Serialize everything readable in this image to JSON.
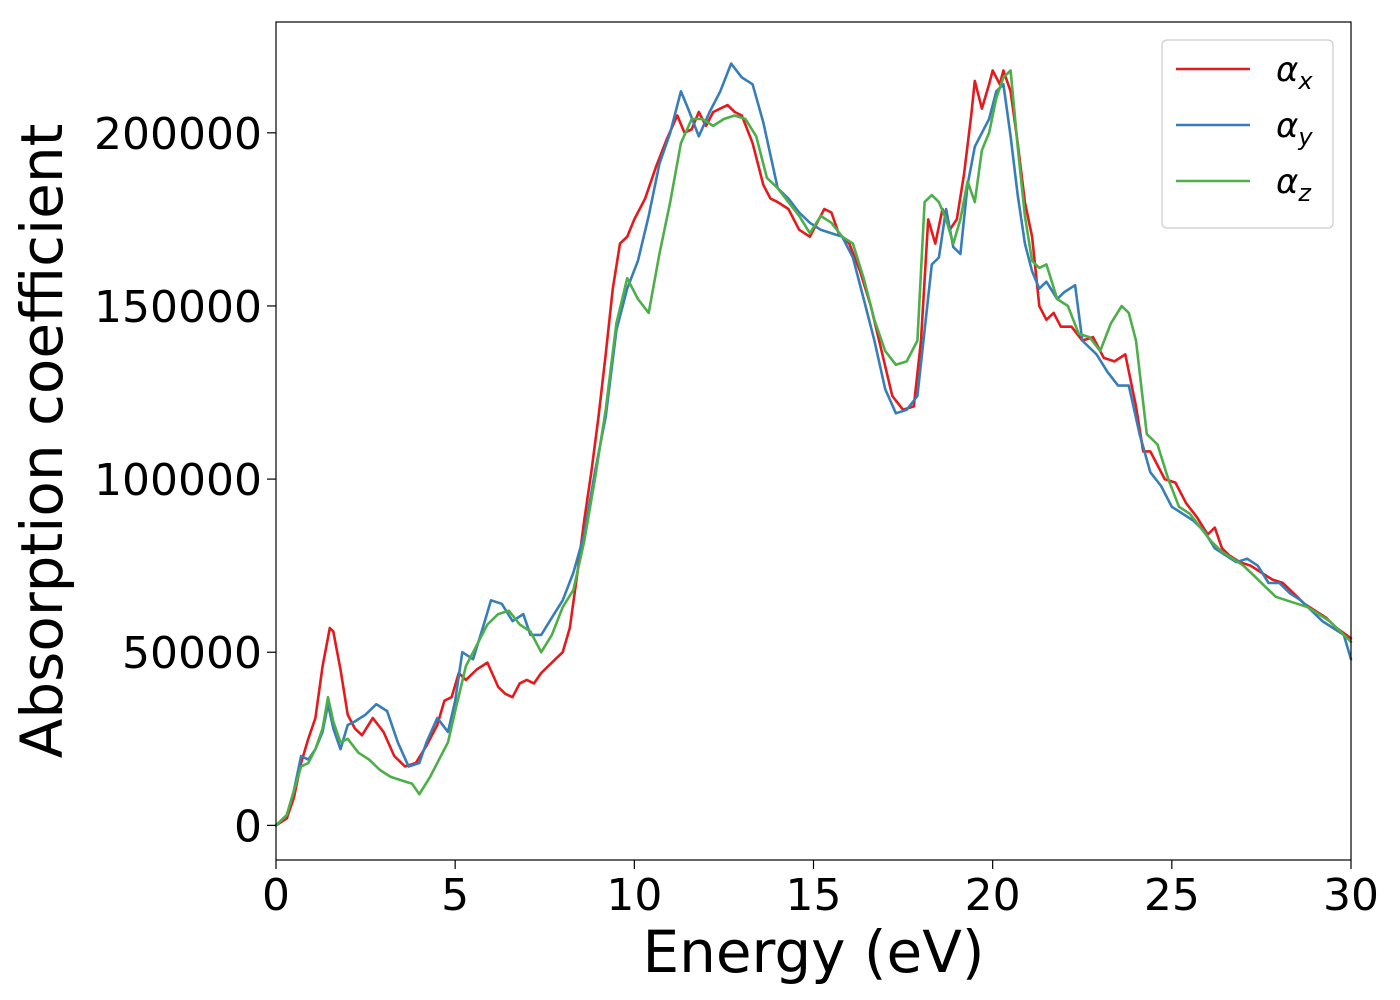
{
  "chart_data": {
    "type": "line",
    "title": "",
    "xlabel": "Energy (eV)",
    "ylabel": "Absorption coefficient",
    "xlim": [
      0,
      30
    ],
    "ylim": [
      -10000,
      232000
    ],
    "xticks": [
      0,
      5,
      10,
      15,
      20,
      25,
      30
    ],
    "yticks": [
      0,
      50000,
      100000,
      150000,
      200000
    ],
    "grid": false,
    "legend": "top-right",
    "series": [
      {
        "name": "α_x",
        "color": "#e41a1c",
        "x": [
          0,
          0.3,
          0.5,
          0.7,
          0.9,
          1.1,
          1.3,
          1.5,
          1.6,
          1.8,
          2.0,
          2.2,
          2.4,
          2.7,
          3.0,
          3.3,
          3.6,
          3.9,
          4.2,
          4.5,
          4.7,
          4.9,
          5.1,
          5.3,
          5.6,
          5.9,
          6.2,
          6.4,
          6.6,
          6.8,
          7.0,
          7.2,
          7.4,
          7.7,
          8.0,
          8.2,
          8.4,
          8.6,
          8.8,
          9.0,
          9.2,
          9.4,
          9.6,
          9.8,
          10.0,
          10.3,
          10.6,
          10.9,
          11.2,
          11.4,
          11.6,
          11.8,
          12.0,
          12.2,
          12.4,
          12.6,
          12.8,
          13.0,
          13.3,
          13.6,
          13.8,
          14.0,
          14.3,
          14.6,
          14.9,
          15.1,
          15.3,
          15.5,
          15.7,
          16.0,
          16.3,
          16.6,
          16.9,
          17.2,
          17.5,
          17.8,
          18.0,
          18.2,
          18.4,
          18.6,
          18.8,
          19.0,
          19.2,
          19.4,
          19.5,
          19.7,
          19.9,
          20.0,
          20.2,
          20.3,
          20.5,
          20.7,
          20.9,
          21.1,
          21.3,
          21.5,
          21.7,
          21.9,
          22.2,
          22.5,
          22.8,
          23.1,
          23.4,
          23.7,
          24.0,
          24.2,
          24.4,
          24.6,
          24.8,
          25.1,
          25.4,
          25.7,
          26.0,
          26.2,
          26.4,
          26.6,
          26.9,
          27.2,
          27.5,
          27.8,
          28.1,
          28.4,
          28.7,
          29.0,
          29.3,
          29.6,
          30.0
        ],
        "y": [
          0,
          2000,
          8000,
          18000,
          25000,
          31000,
          46000,
          57000,
          56000,
          45000,
          32000,
          28000,
          26000,
          31000,
          27000,
          20000,
          17000,
          18000,
          23000,
          29000,
          36000,
          37000,
          44000,
          42000,
          45000,
          47000,
          40000,
          38000,
          37000,
          41000,
          42000,
          41000,
          44000,
          47000,
          50000,
          57000,
          72000,
          88000,
          102000,
          118000,
          136000,
          155000,
          168000,
          170000,
          175000,
          181000,
          190000,
          198000,
          205000,
          200000,
          201000,
          206000,
          202000,
          206000,
          207000,
          208000,
          206000,
          205000,
          197000,
          185000,
          181000,
          180000,
          178000,
          172000,
          170000,
          174000,
          178000,
          177000,
          171000,
          168000,
          160000,
          150000,
          137000,
          124000,
          120000,
          121000,
          140000,
          175000,
          168000,
          178000,
          172000,
          175000,
          188000,
          205000,
          215000,
          207000,
          214000,
          218000,
          214000,
          218000,
          212000,
          197000,
          180000,
          170000,
          150000,
          146000,
          148000,
          144000,
          144000,
          140000,
          141000,
          135000,
          134000,
          136000,
          121000,
          108000,
          108000,
          104000,
          100000,
          99000,
          93000,
          89000,
          84000,
          86000,
          80000,
          78000,
          76000,
          75000,
          73000,
          71000,
          70000,
          67000,
          64000,
          62000,
          60000,
          57000,
          54000
        ]
      },
      {
        "name": "α_y",
        "color": "#377eb8",
        "x": [
          0,
          0.3,
          0.5,
          0.7,
          0.9,
          1.1,
          1.3,
          1.45,
          1.6,
          1.8,
          2.0,
          2.2,
          2.5,
          2.8,
          3.1,
          3.4,
          3.7,
          4.0,
          4.2,
          4.5,
          4.8,
          5.0,
          5.2,
          5.5,
          5.8,
          6.0,
          6.3,
          6.6,
          6.9,
          7.1,
          7.4,
          7.7,
          8.0,
          8.3,
          8.6,
          8.9,
          9.2,
          9.5,
          9.8,
          10.1,
          10.4,
          10.7,
          11.0,
          11.3,
          11.5,
          11.8,
          12.1,
          12.4,
          12.7,
          13.0,
          13.3,
          13.6,
          14.0,
          14.3,
          14.6,
          14.9,
          15.2,
          15.5,
          15.8,
          16.1,
          16.4,
          16.7,
          17.0,
          17.3,
          17.6,
          17.9,
          18.1,
          18.3,
          18.5,
          18.7,
          18.9,
          19.1,
          19.3,
          19.5,
          19.7,
          19.9,
          20.1,
          20.3,
          20.5,
          20.7,
          20.9,
          21.1,
          21.3,
          21.5,
          21.8,
          22.0,
          22.3,
          22.5,
          22.7,
          22.9,
          23.2,
          23.5,
          23.8,
          24.1,
          24.4,
          24.7,
          25.0,
          25.3,
          25.6,
          25.9,
          26.2,
          26.5,
          26.8,
          27.1,
          27.4,
          27.7,
          28.0,
          28.3,
          28.6,
          28.9,
          29.2,
          29.5,
          29.8,
          30.0
        ],
        "y": [
          0,
          3000,
          10000,
          20000,
          19000,
          22000,
          27000,
          35000,
          28000,
          22000,
          29000,
          30000,
          32000,
          35000,
          33000,
          24000,
          17000,
          18000,
          24000,
          31000,
          27000,
          36000,
          50000,
          48000,
          58000,
          65000,
          64000,
          59000,
          61000,
          55000,
          55000,
          60000,
          65000,
          73000,
          84000,
          102000,
          118000,
          143000,
          155000,
          163000,
          176000,
          191000,
          200000,
          212000,
          207000,
          199000,
          206000,
          212000,
          220000,
          216000,
          214000,
          203000,
          184000,
          181000,
          177000,
          174000,
          172000,
          171000,
          170000,
          164000,
          152000,
          140000,
          126000,
          119000,
          120000,
          124000,
          143000,
          162000,
          164000,
          178000,
          167000,
          165000,
          185000,
          196000,
          200000,
          204000,
          212000,
          214000,
          199000,
          182000,
          168000,
          160000,
          155000,
          157000,
          152000,
          154000,
          156000,
          140000,
          138000,
          136000,
          131000,
          127000,
          127000,
          113000,
          102000,
          98000,
          92000,
          90000,
          88000,
          85000,
          80000,
          78000,
          76000,
          77000,
          75000,
          70000,
          70000,
          67000,
          65000,
          62000,
          59000,
          57000,
          55000,
          48000
        ]
      },
      {
        "name": "α_z",
        "color": "#4daf4a",
        "x": [
          0,
          0.3,
          0.5,
          0.7,
          0.9,
          1.1,
          1.3,
          1.45,
          1.6,
          1.8,
          2.0,
          2.3,
          2.6,
          2.9,
          3.2,
          3.5,
          3.8,
          4.0,
          4.3,
          4.6,
          4.8,
          5.0,
          5.3,
          5.6,
          5.9,
          6.2,
          6.5,
          6.8,
          7.1,
          7.4,
          7.7,
          8.0,
          8.3,
          8.6,
          8.9,
          9.2,
          9.5,
          9.8,
          10.1,
          10.4,
          10.7,
          11.0,
          11.3,
          11.6,
          11.9,
          12.2,
          12.5,
          12.8,
          13.1,
          13.4,
          13.7,
          14.0,
          14.3,
          14.6,
          14.9,
          15.2,
          15.5,
          15.8,
          16.1,
          16.4,
          16.7,
          17.0,
          17.3,
          17.6,
          17.9,
          18.1,
          18.3,
          18.5,
          18.7,
          18.9,
          19.1,
          19.3,
          19.5,
          19.7,
          19.9,
          20.1,
          20.3,
          20.5,
          20.7,
          20.9,
          21.1,
          21.3,
          21.5,
          21.8,
          22.1,
          22.4,
          22.7,
          23.0,
          23.3,
          23.6,
          23.8,
          24.0,
          24.3,
          24.6,
          24.9,
          25.2,
          25.5,
          25.8,
          26.1,
          26.4,
          26.7,
          27.0,
          27.3,
          27.6,
          27.9,
          28.2,
          28.5,
          28.8,
          29.1,
          29.4,
          29.7,
          30.0
        ],
        "y": [
          0,
          3000,
          10000,
          17000,
          18000,
          22000,
          28000,
          37000,
          30000,
          24000,
          25000,
          21000,
          19000,
          16000,
          14000,
          13000,
          12000,
          9000,
          14000,
          20000,
          24000,
          33000,
          46000,
          52000,
          58000,
          61000,
          62000,
          58000,
          56000,
          50000,
          55000,
          63000,
          68000,
          82000,
          100000,
          120000,
          145000,
          158000,
          152000,
          148000,
          165000,
          180000,
          197000,
          204000,
          204000,
          202000,
          204000,
          205000,
          204000,
          199000,
          187000,
          184000,
          180000,
          176000,
          171000,
          176000,
          174000,
          170000,
          168000,
          158000,
          146000,
          137000,
          133000,
          134000,
          140000,
          180000,
          182000,
          180000,
          175000,
          168000,
          175000,
          186000,
          180000,
          195000,
          200000,
          210000,
          216000,
          218000,
          196000,
          176000,
          163000,
          161000,
          162000,
          152000,
          150000,
          142000,
          141000,
          137000,
          145000,
          150000,
          148000,
          140000,
          113000,
          110000,
          100000,
          92000,
          90000,
          86000,
          82000,
          79000,
          77000,
          75000,
          72000,
          69000,
          66000,
          65000,
          64000,
          63000,
          61000,
          59000,
          56000,
          53000
        ]
      }
    ]
  }
}
